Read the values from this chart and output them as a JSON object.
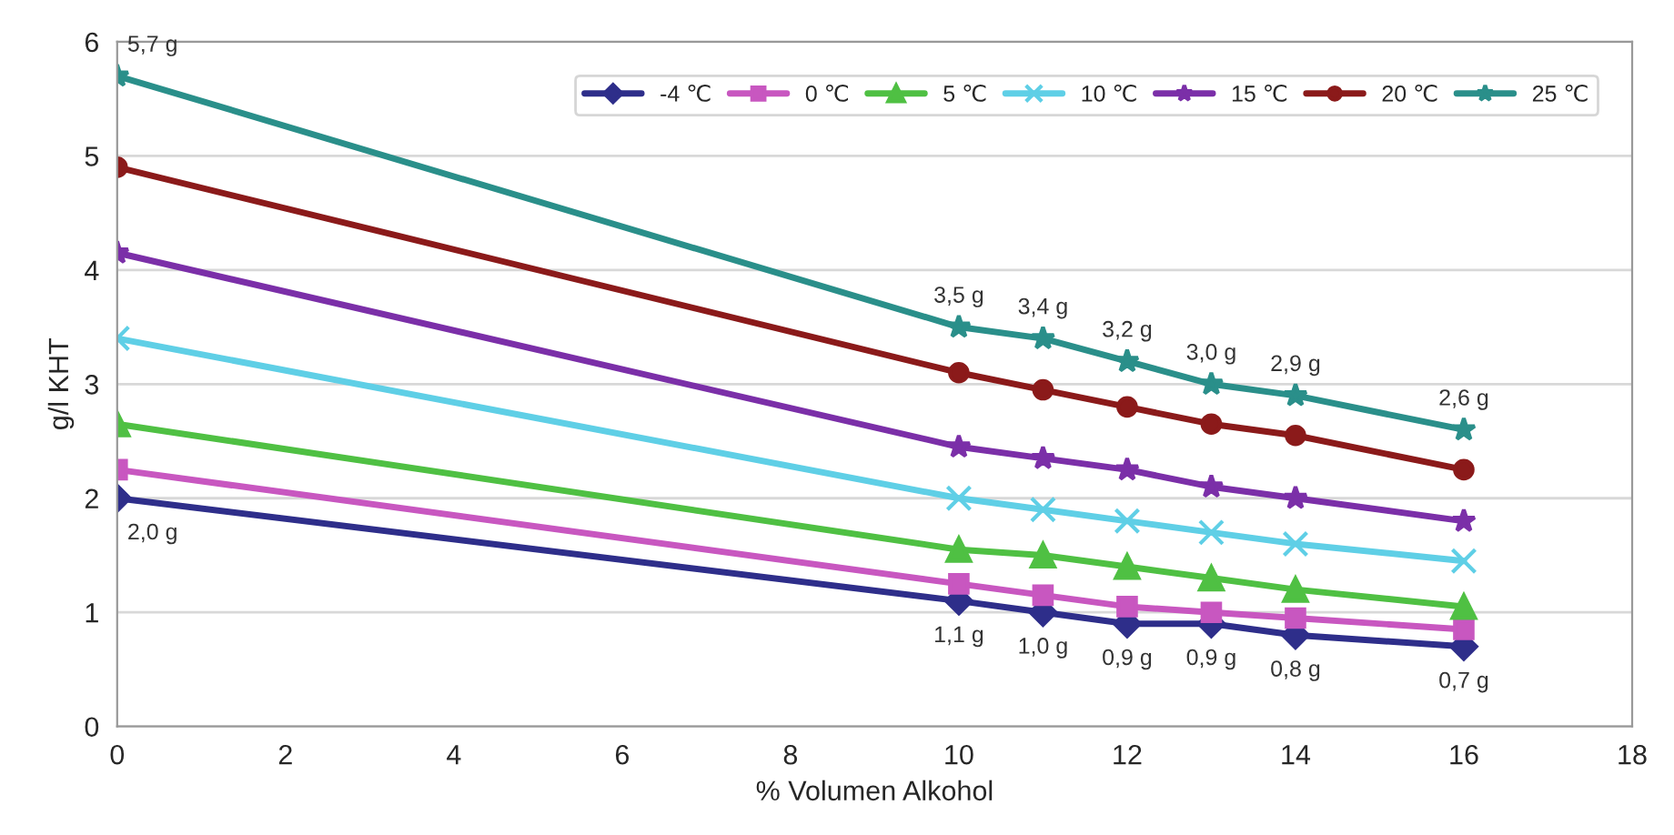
{
  "chart_data": {
    "type": "line",
    "xlabel": "% Volumen Alkohol",
    "ylabel": "g/l KHT",
    "x": [
      0,
      10,
      11,
      12,
      13,
      14,
      16
    ],
    "xlim": [
      0,
      18
    ],
    "xticks": [
      0,
      2,
      4,
      6,
      8,
      10,
      12,
      14,
      16,
      18
    ],
    "ylim": [
      0,
      6
    ],
    "yticks": [
      0,
      1,
      2,
      3,
      4,
      5,
      6
    ],
    "grid": "y",
    "legend": "top right",
    "series": [
      {
        "name": "-4 ℃",
        "color": "#2e2e8a",
        "marker": "diamond",
        "values": [
          2.0,
          1.1,
          1.0,
          0.9,
          0.9,
          0.8,
          0.7
        ],
        "value_labels": [
          "2,0 g",
          "1,1 g",
          "1,0 g",
          "0,9 g",
          "0,9 g",
          "0,8 g",
          "0,7 g"
        ]
      },
      {
        "name": "0 ℃",
        "color": "#c857c0",
        "marker": "square",
        "values": [
          2.25,
          1.25,
          1.15,
          1.05,
          1.0,
          0.95,
          0.85
        ]
      },
      {
        "name": "5 ℃",
        "color": "#4fc043",
        "marker": "triangle",
        "values": [
          2.65,
          1.55,
          1.5,
          1.4,
          1.3,
          1.2,
          1.05
        ]
      },
      {
        "name": "10 ℃",
        "color": "#5fcfe6",
        "marker": "cross",
        "values": [
          3.4,
          2.0,
          1.9,
          1.8,
          1.7,
          1.6,
          1.45
        ]
      },
      {
        "name": "15 ℃",
        "color": "#7b2fa8",
        "marker": "star",
        "values": [
          4.15,
          2.45,
          2.35,
          2.25,
          2.1,
          2.0,
          1.8
        ]
      },
      {
        "name": "20 ℃",
        "color": "#8b1a1a",
        "marker": "circle",
        "values": [
          4.9,
          3.1,
          2.95,
          2.8,
          2.65,
          2.55,
          2.25
        ]
      },
      {
        "name": "25 ℃",
        "color": "#2a8f8a",
        "marker": "star",
        "values": [
          5.7,
          3.5,
          3.4,
          3.2,
          3.0,
          2.9,
          2.6
        ],
        "value_labels": [
          "5,7 g",
          "3,5 g",
          "3,4 g",
          "3,2 g",
          "3,0 g",
          "2,9 g",
          "2,6 g"
        ]
      }
    ]
  }
}
